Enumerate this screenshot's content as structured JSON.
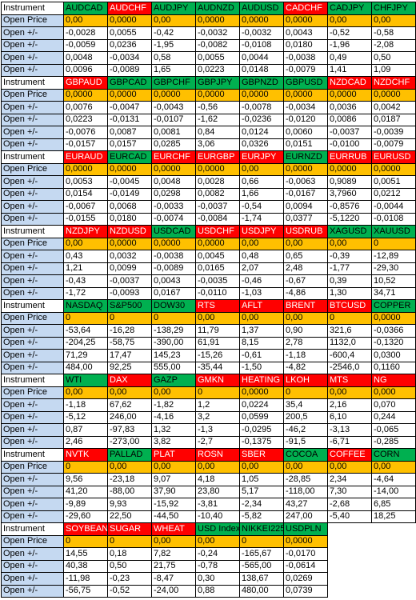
{
  "blocks": [
    {
      "label": "Instrument",
      "instruments": [
        {
          "name": "AUDCAD",
          "color": "green"
        },
        {
          "name": "AUDCHF",
          "color": "red"
        },
        {
          "name": "AUDJPY",
          "color": "green"
        },
        {
          "name": "AUDNZD",
          "color": "green"
        },
        {
          "name": "AUDUSD",
          "color": "green"
        },
        {
          "name": "CADCHF",
          "color": "red"
        },
        {
          "name": "CADJPY",
          "color": "green"
        },
        {
          "name": "CHFJPY",
          "color": "green"
        }
      ],
      "open_price_label": "Open Price",
      "open_price": [
        "0,00",
        "0,0000",
        "0,00",
        "0,0000",
        "0,0000",
        "0,0000",
        "0,00",
        "0,00"
      ],
      "rows": [
        {
          "label": "Open +/-",
          "values": [
            "-0,0028",
            "0,0055",
            "-0,42",
            "-0,0032",
            "-0,0032",
            "0,0043",
            "-0,52",
            "-0,58"
          ]
        },
        {
          "label": "Open +/-",
          "values": [
            "-0,0059",
            "0,0236",
            "-1,95",
            "-0,0082",
            "-0,0108",
            "0,0180",
            "-1,96",
            "-2,08"
          ]
        },
        {
          "label": "Open +/-",
          "values": [
            "0,0048",
            "-0,0034",
            "0,58",
            "0,0055",
            "0,0044",
            "-0,0038",
            "0,49",
            "0,50"
          ]
        },
        {
          "label": "Open +/-",
          "values": [
            "0,0096",
            "-0,0089",
            "1,65",
            "0,0223",
            "0,0148",
            "-0,0079",
            "1,41",
            "1,09"
          ]
        }
      ]
    },
    {
      "label": "Instrument",
      "instruments": [
        {
          "name": "GBPAUD",
          "color": "red"
        },
        {
          "name": "GBPCAD",
          "color": "green"
        },
        {
          "name": "GBPCHF",
          "color": "green"
        },
        {
          "name": "GBPJPY",
          "color": "green"
        },
        {
          "name": "GBPNZD",
          "color": "green"
        },
        {
          "name": "GBPUSD",
          "color": "green"
        },
        {
          "name": "NZDCAD",
          "color": "red"
        },
        {
          "name": "NZDCHF",
          "color": "red"
        }
      ],
      "open_price_label": "Open Price",
      "open_price": [
        "0,0000",
        "0,0000",
        "0,0000",
        "0,0000",
        "0,0000",
        "0,0000",
        "0,0000",
        "0,0000"
      ],
      "rows": [
        {
          "label": "Open +/-",
          "values": [
            "0,0076",
            "-0,0047",
            "-0,0043",
            "-0,56",
            "-0,0078",
            "-0,0034",
            "0,0036",
            "0,0042"
          ]
        },
        {
          "label": "Open +/-",
          "values": [
            "0,0223",
            "-0,0131",
            "-0,0107",
            "-1,62",
            "-0,0236",
            "-0,0120",
            "0,0086",
            "0,0187"
          ]
        },
        {
          "label": "Open +/-",
          "values": [
            "-0,0076",
            "0,0087",
            "0,0081",
            "0,84",
            "0,0124",
            "0,0060",
            "-0,0037",
            "-0,0039"
          ]
        },
        {
          "label": "Open +/-",
          "values": [
            "-0,0157",
            "0,0157",
            "0,0285",
            "3,06",
            "0,0326",
            "0,0151",
            "-0,0100",
            "-0,0079"
          ]
        }
      ]
    },
    {
      "label": "Instrument",
      "instruments": [
        {
          "name": "EURAUD",
          "color": "red"
        },
        {
          "name": "EURCAD",
          "color": "green"
        },
        {
          "name": "EURCHF",
          "color": "red"
        },
        {
          "name": "EURGBP",
          "color": "red"
        },
        {
          "name": "EURJPY",
          "color": "red"
        },
        {
          "name": "EURNZD",
          "color": "green"
        },
        {
          "name": "EURRUB",
          "color": "red"
        },
        {
          "name": "EURUSD",
          "color": "red"
        }
      ],
      "open_price_label": "Open Price",
      "open_price": [
        "0,0000",
        "0,0000",
        "0,0000",
        "0,0000",
        "0,00",
        "0,0000",
        "0,0000",
        "0,0000"
      ],
      "rows": [
        {
          "label": "Open +/-",
          "values": [
            "0,0053",
            "-0,0045",
            "0,0048",
            "0,0028",
            "0,66",
            "-0,0063",
            "0,9089",
            "0,0051"
          ]
        },
        {
          "label": "Open +/-",
          "values": [
            "0,0154",
            "-0,0149",
            "0,0298",
            "0,0082",
            "1,66",
            "-0,0167",
            "3,7960",
            "0,0212"
          ]
        },
        {
          "label": "Open +/-",
          "values": [
            "-0,0067",
            "0,0068",
            "-0,0033",
            "-0,0037",
            "-0,54",
            "0,0094",
            "-0,8576",
            "-0,0044"
          ]
        },
        {
          "label": "Open +/-",
          "values": [
            "-0,0155",
            "0,0180",
            "-0,0074",
            "-0,0084",
            "-1,74",
            "0,0377",
            "-5,1220",
            "-0,0108"
          ]
        }
      ]
    },
    {
      "label": "Instrument",
      "instruments": [
        {
          "name": "NZDJPY",
          "color": "red"
        },
        {
          "name": "NZDUSD",
          "color": "red"
        },
        {
          "name": "USDCAD",
          "color": "green"
        },
        {
          "name": "USDCHF",
          "color": "red"
        },
        {
          "name": "USDJPY",
          "color": "red"
        },
        {
          "name": "USDRUB",
          "color": "red"
        },
        {
          "name": "XAGUSD",
          "color": "green"
        },
        {
          "name": "XAUUSD",
          "color": "green"
        }
      ],
      "open_price_label": "Open Price",
      "open_price": [
        "0,00",
        "0,0000",
        "0,0000",
        "0,0000",
        "0,00",
        "0,00",
        "0,00",
        "0"
      ],
      "rows": [
        {
          "label": "Open +/-",
          "values": [
            "0,43",
            "0,0032",
            "-0,0038",
            "0,0045",
            "0,48",
            "0,65",
            "-0,39",
            "-12,89"
          ]
        },
        {
          "label": "Open +/-",
          "values": [
            "1,21",
            "0,0099",
            "-0,0089",
            "0,0165",
            "2,07",
            "2,48",
            "-1,77",
            "-29,30"
          ]
        },
        {
          "label": "Open +/-",
          "values": [
            "-0,43",
            "-0,0037",
            "0,0043",
            "-0,0035",
            "-0,46",
            "-0,67",
            "0,39",
            "10,52"
          ]
        },
        {
          "label": "Open +/-",
          "values": [
            "-1,72",
            "-0,0093",
            "0,0167",
            "-0,0110",
            "-1,03",
            "-4,86",
            "1,30",
            "34,71"
          ]
        }
      ]
    },
    {
      "label": "Instrument",
      "instruments": [
        {
          "name": "NASDAQ",
          "color": "green"
        },
        {
          "name": "S&P500",
          "color": "green"
        },
        {
          "name": "DOW30",
          "color": "green"
        },
        {
          "name": "RTS",
          "color": "red"
        },
        {
          "name": "AFLT",
          "color": "red"
        },
        {
          "name": "BRENT",
          "color": "red"
        },
        {
          "name": "BTCUSD",
          "color": "red"
        },
        {
          "name": "COPPER",
          "color": "green"
        }
      ],
      "open_price_label": "Open Price",
      "open_price": [
        "0",
        "0",
        "0",
        "0,00",
        "0,00",
        "0,00",
        "0",
        "0,0000"
      ],
      "rows": [
        {
          "label": "Open +/-",
          "values": [
            "-53,64",
            "-16,28",
            "-138,29",
            "11,79",
            "1,37",
            "0,90",
            "321,6",
            "-0,0366"
          ]
        },
        {
          "label": "Open +/-",
          "values": [
            "-204,25",
            "-58,75",
            "-390,00",
            "61,91",
            "8,15",
            "2,78",
            "1132,0",
            "-0,1320"
          ]
        },
        {
          "label": "Open +/-",
          "values": [
            "71,29",
            "17,47",
            "145,23",
            "-15,26",
            "-0,61",
            "-1,18",
            "-600,4",
            "0,0300"
          ]
        },
        {
          "label": "Open +/-",
          "values": [
            "484,00",
            "92,25",
            "555,00",
            "-35,44",
            "-1,50",
            "-4,82",
            "-2546,0",
            "0,1160"
          ]
        }
      ]
    },
    {
      "label": "Instrument",
      "instruments": [
        {
          "name": "WTI",
          "color": "green"
        },
        {
          "name": "DAX",
          "color": "red"
        },
        {
          "name": "GAZP",
          "color": "green"
        },
        {
          "name": "GMKN",
          "color": "red"
        },
        {
          "name": "HEATING",
          "color": "red"
        },
        {
          "name": "LKOH",
          "color": "red"
        },
        {
          "name": "MTS",
          "color": "red"
        },
        {
          "name": "NG",
          "color": "red"
        }
      ],
      "open_price_label": "Open Price",
      "open_price": [
        "0,00",
        "0,00",
        "0,00",
        "0",
        "0,0000",
        "0",
        "0,00",
        "0,000"
      ],
      "rows": [
        {
          "label": "Open +/-",
          "values": [
            "-1,18",
            "67,62",
            "-1,82",
            "1,2",
            "0,0224",
            "35,4",
            "2,16",
            "0,070"
          ]
        },
        {
          "label": "Open +/-",
          "values": [
            "-5,12",
            "246,00",
            "-4,16",
            "3,2",
            "0,0599",
            "200,5",
            "6,10",
            "0,244"
          ]
        },
        {
          "label": "Open +/-",
          "values": [
            "0,87",
            "-97,83",
            "1,32",
            "-1,3",
            "-0,0295",
            "-46,2",
            "-3,13",
            "-0,065"
          ]
        },
        {
          "label": "Open +/-",
          "values": [
            "2,46",
            "-273,00",
            "3,82",
            "-2,7",
            "-0,1375",
            "-91,5",
            "-6,71",
            "-0,285"
          ]
        }
      ]
    },
    {
      "label": "Instrument",
      "instruments": [
        {
          "name": "NVTK",
          "color": "red"
        },
        {
          "name": "PALLAD",
          "color": "green"
        },
        {
          "name": "PLAT",
          "color": "red"
        },
        {
          "name": "ROSN",
          "color": "red"
        },
        {
          "name": "SBER",
          "color": "red"
        },
        {
          "name": "COCOA",
          "color": "green"
        },
        {
          "name": "COFFEE",
          "color": "red"
        },
        {
          "name": "CORN",
          "color": "green"
        }
      ],
      "open_price_label": "Open Price",
      "open_price": [
        "0",
        "0,00",
        "0,00",
        "0,00",
        "0,00",
        "0,00",
        "0,00",
        "0,00"
      ],
      "rows": [
        {
          "label": "Open +/-",
          "values": [
            "9,56",
            "-23,18",
            "9,07",
            "4,18",
            "1,05",
            "-28,85",
            "2,34",
            "-4,64"
          ]
        },
        {
          "label": "Open +/-",
          "values": [
            "41,20",
            "-88,00",
            "37,90",
            "23,80",
            "5,17",
            "-118,00",
            "7,30",
            "-14,00"
          ]
        },
        {
          "label": "Open +/-",
          "values": [
            "-9,89",
            "9,93",
            "-15,92",
            "-3,81",
            "-2,34",
            "43,27",
            "-2,68",
            "6,85"
          ]
        },
        {
          "label": "Open +/-",
          "values": [
            "-29,60",
            "22,50",
            "-44,50",
            "-10,40",
            "-5,82",
            "247,00",
            "-5,40",
            "18,25"
          ]
        }
      ]
    },
    {
      "label": "Instrument",
      "instruments": [
        {
          "name": "SOYBEAN",
          "color": "red"
        },
        {
          "name": "SUGAR",
          "color": "red"
        },
        {
          "name": "WHEAT",
          "color": "red"
        },
        {
          "name": "USD Index",
          "color": "green"
        },
        {
          "name": "NIKKEI225",
          "color": "green"
        },
        {
          "name": "USDPLN",
          "color": "green"
        }
      ],
      "open_price_label": "Open Price",
      "open_price": [
        "0",
        "0",
        "0,00",
        "0,00",
        "0",
        "0,0000"
      ],
      "rows": [
        {
          "label": "Open +/-",
          "values": [
            "14,55",
            "0,18",
            "7,82",
            "-0,24",
            "-165,67",
            "-0,0170"
          ]
        },
        {
          "label": "Open +/-",
          "values": [
            "40,38",
            "0,50",
            "21,75",
            "-0,78",
            "-565,00",
            "-0,0614"
          ]
        },
        {
          "label": "Open +/-",
          "values": [
            "-11,98",
            "-0,23",
            "-8,47",
            "0,30",
            "138,67",
            "0,0269"
          ]
        },
        {
          "label": "Open +/-",
          "values": [
            "-56,75",
            "-0,52",
            "-24,00",
            "0,88",
            "480,00",
            "0,0739"
          ]
        }
      ]
    }
  ]
}
